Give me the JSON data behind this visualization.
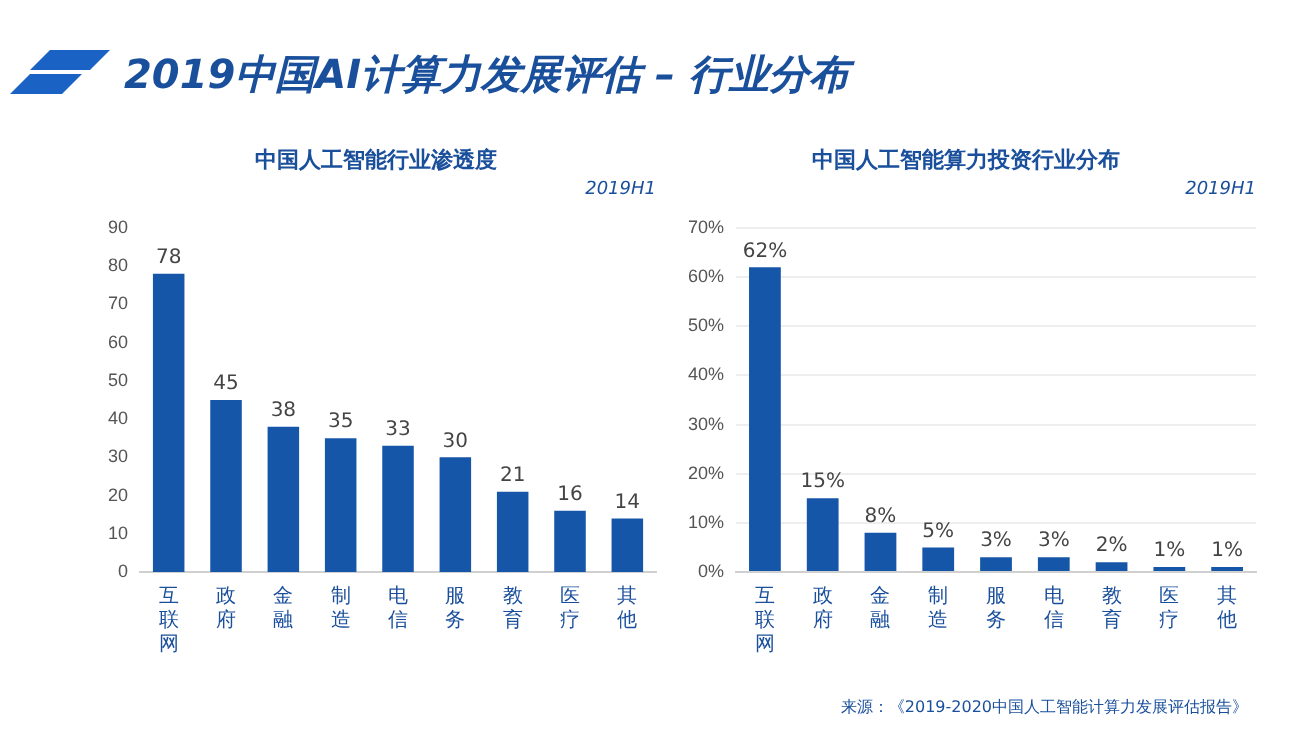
{
  "chart_data": [
    {
      "type": "bar",
      "title": "中国人工智能行业渗透度",
      "subtitle": "2019H1",
      "annotations": [
        "2019中国AI计算力发展评估 – 行业分布"
      ],
      "categories": [
        "互联网",
        "政府",
        "金融",
        "制造",
        "电信",
        "服务",
        "教育",
        "医疗",
        "其他"
      ],
      "values": [
        78,
        45,
        38,
        35,
        33,
        30,
        21,
        16,
        14
      ],
      "color": "#1656a8",
      "data_labels": true,
      "ylim": [
        0,
        90
      ],
      "yticks": [
        0,
        10,
        20,
        30,
        40,
        50,
        60,
        70,
        80,
        90
      ],
      "grid": false,
      "legend": false
    },
    {
      "type": "bar",
      "title": "中国人工智能算力投资行业分布",
      "subtitle": "2019H1",
      "annotations": [
        "来源：《2019-2020中国人工智能计算力发展评估报告》"
      ],
      "categories": [
        "互联网",
        "政府",
        "金融",
        "制造",
        "服务",
        "电信",
        "教育",
        "医疗",
        "其他"
      ],
      "values": [
        62,
        15,
        8,
        5,
        3,
        3,
        2,
        1,
        1
      ],
      "color": "#1656a8",
      "value_labels": [
        "62%",
        "15%",
        "8%",
        "5%",
        "3%",
        "3%",
        "2%",
        "1%",
        "1%"
      ],
      "ylim": [
        0,
        70
      ],
      "yticks": [
        {
          "value": 0,
          "label": "0%"
        },
        {
          "value": 10,
          "label": "10%"
        },
        {
          "value": 20,
          "label": "20%"
        },
        {
          "value": 30,
          "label": "30%"
        },
        {
          "value": 40,
          "label": "40%"
        },
        {
          "value": 50,
          "label": "50%"
        },
        {
          "value": 60,
          "label": "60%"
        },
        {
          "value": 70,
          "label": "70%"
        }
      ],
      "grid": "y",
      "legend": false
    }
  ]
}
